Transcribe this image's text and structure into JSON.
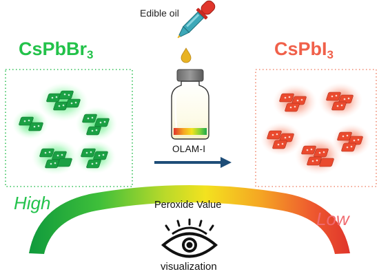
{
  "left_panel": {
    "formula_main": "CsPbBr",
    "formula_sub": "3"
  },
  "right_panel": {
    "formula_main": "CsPbI",
    "formula_sub": "3"
  },
  "dropper": {
    "label": "Edible oil"
  },
  "vial": {
    "label": "OLAM-I"
  },
  "scale": {
    "left_label": "High",
    "right_label": "Low",
    "center_label": "Peroxide Value",
    "bottom_label": "visualization"
  },
  "colors": {
    "green": "#23c24a",
    "red": "#f0604a",
    "arrow": "#1e4d78",
    "dropper_red": "#e0352b",
    "dropper_teal": "#3ca8b8",
    "oil": "#e8b324"
  }
}
